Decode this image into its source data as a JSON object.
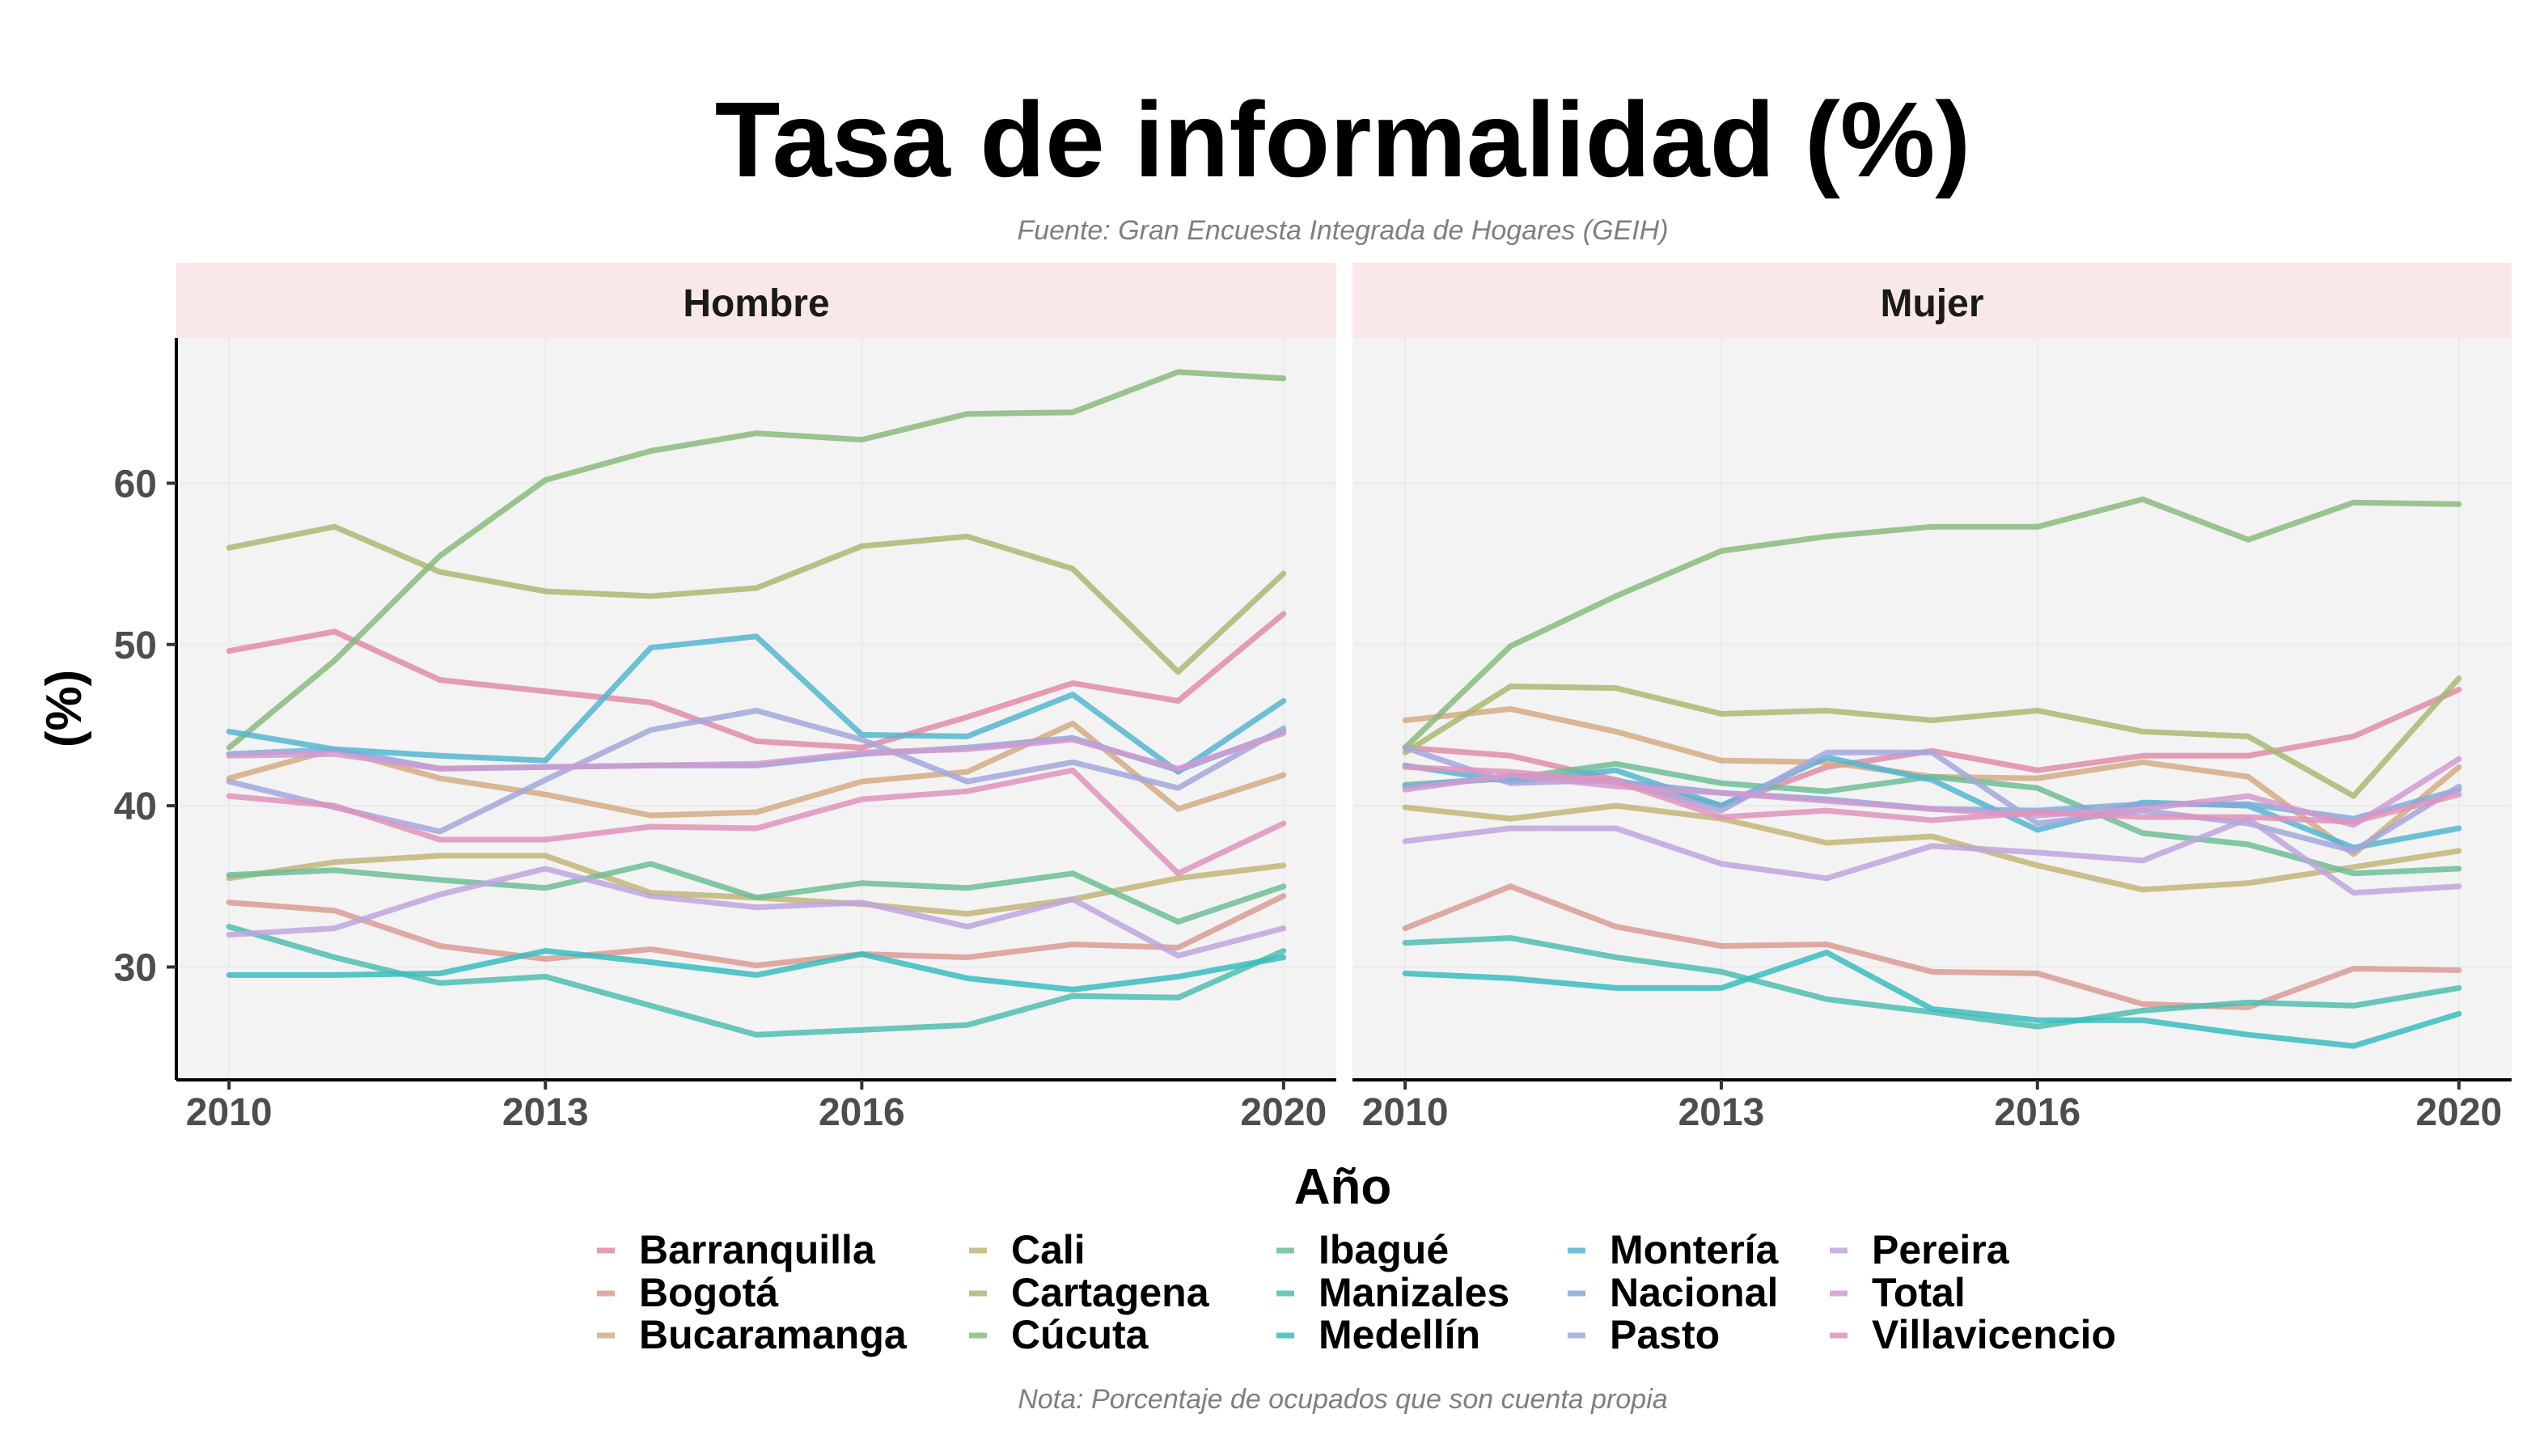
{
  "chart_data": {
    "type": "line",
    "title": "Tasa de informalidad (%)",
    "subtitle": "Fuente: Gran Encuesta Integrada de Hogares (GEIH)",
    "caption": "Nota: Porcentaje de ocupados que son cuenta propia",
    "xlabel": "Año",
    "ylabel": "(%)",
    "x": [
      2010,
      2011,
      2012,
      2013,
      2014,
      2015,
      2016,
      2017,
      2018,
      2019,
      2020
    ],
    "xlim": [
      2009.5,
      2020.5
    ],
    "ylim": [
      23,
      69
    ],
    "xticks": [
      "2010",
      "2013",
      "2016",
      "2020"
    ],
    "yticks": [
      "30",
      "40",
      "50",
      "60"
    ],
    "grid": true,
    "legend_position": "bottom",
    "colors": {
      "Barranquilla": "#e08ca6",
      "Bogotá": "#d99b93",
      "Bucaramanga": "#d3aa82",
      "Cali": "#c2b577",
      "Cartagena": "#a9b872",
      "Cúcuta": "#88ba7c",
      "Ibagué": "#6cbd96",
      "Manizales": "#4fbdaf",
      "Medellín": "#38bcbf",
      "Montería": "#52b6cf",
      "Nacional": "#7eacdb",
      "Pasto": "#a3a7dc",
      "Pereira": "#bea5dc",
      "Total": "#d29ad0",
      "Villavicencio": "#df93bb"
    },
    "panels": [
      {
        "name": "Hombre",
        "series": [
          {
            "name": "Barranquilla",
            "values": [
              49.6,
              50.8,
              47.8,
              47.1,
              46.4,
              44.0,
              43.6,
              45.5,
              47.6,
              46.5,
              51.9
            ]
          },
          {
            "name": "Bogotá",
            "values": [
              34.0,
              33.5,
              31.3,
              30.5,
              31.1,
              30.1,
              30.8,
              30.6,
              31.4,
              31.2,
              34.4
            ]
          },
          {
            "name": "Bucaramanga",
            "values": [
              41.7,
              43.5,
              41.7,
              40.7,
              39.4,
              39.6,
              41.5,
              42.1,
              45.1,
              39.8,
              41.9
            ]
          },
          {
            "name": "Cali",
            "values": [
              35.5,
              36.5,
              36.9,
              36.9,
              34.6,
              34.3,
              33.9,
              33.3,
              34.2,
              35.5,
              36.3
            ]
          },
          {
            "name": "Cartagena",
            "values": [
              56.0,
              57.3,
              54.5,
              53.3,
              53.0,
              53.5,
              56.1,
              56.7,
              54.7,
              48.3,
              54.4
            ]
          },
          {
            "name": "Cúcuta",
            "values": [
              43.6,
              49.0,
              55.5,
              60.2,
              62.0,
              63.1,
              62.7,
              64.3,
              64.4,
              66.9,
              66.5
            ]
          },
          {
            "name": "Ibagué",
            "values": [
              35.7,
              36.0,
              35.4,
              34.9,
              36.4,
              34.3,
              35.2,
              34.9,
              35.8,
              32.8,
              35.0
            ]
          },
          {
            "name": "Manizales",
            "values": [
              32.5,
              30.6,
              29.0,
              29.4,
              27.6,
              25.8,
              26.1,
              26.4,
              28.2,
              28.1,
              31.0
            ]
          },
          {
            "name": "Medellín",
            "values": [
              29.5,
              29.5,
              29.6,
              31.0,
              30.3,
              29.5,
              30.8,
              29.3,
              28.6,
              29.4,
              30.6
            ]
          },
          {
            "name": "Montería",
            "values": [
              44.6,
              43.5,
              43.1,
              42.8,
              49.8,
              50.5,
              44.4,
              44.3,
              46.9,
              42.1,
              46.5
            ]
          },
          {
            "name": "Nacional",
            "values": [
              43.2,
              43.5,
              42.3,
              42.4,
              42.5,
              42.5,
              43.2,
              43.6,
              44.2,
              42.2,
              44.6
            ]
          },
          {
            "name": "Pasto",
            "values": [
              41.5,
              39.9,
              38.4,
              41.6,
              44.7,
              45.9,
              44.1,
              41.5,
              42.7,
              41.1,
              44.8
            ]
          },
          {
            "name": "Pereira",
            "values": [
              32.0,
              32.4,
              34.5,
              36.1,
              34.4,
              33.7,
              34.0,
              32.5,
              34.2,
              30.7,
              32.4
            ]
          },
          {
            "name": "Total",
            "values": [
              43.1,
              43.2,
              42.3,
              42.4,
              42.5,
              42.6,
              43.3,
              43.5,
              44.1,
              42.3,
              44.5
            ]
          },
          {
            "name": "Villavicencio",
            "values": [
              40.6,
              40.0,
              37.9,
              37.9,
              38.7,
              38.6,
              40.4,
              40.9,
              42.2,
              35.8,
              38.9
            ]
          }
        ]
      },
      {
        "name": "Mujer",
        "series": [
          {
            "name": "Barranquilla",
            "values": [
              43.6,
              43.1,
              41.6,
              40.0,
              42.4,
              43.4,
              42.2,
              43.1,
              43.1,
              44.3,
              47.2
            ]
          },
          {
            "name": "Bogotá",
            "values": [
              32.4,
              35.0,
              32.5,
              31.3,
              31.4,
              29.7,
              29.6,
              27.7,
              27.5,
              29.9,
              29.8
            ]
          },
          {
            "name": "Bucaramanga",
            "values": [
              45.3,
              46.0,
              44.6,
              42.8,
              42.7,
              41.8,
              41.7,
              42.7,
              41.8,
              37.0,
              42.4
            ]
          },
          {
            "name": "Cali",
            "values": [
              39.9,
              39.2,
              40.0,
              39.2,
              37.7,
              38.1,
              36.3,
              34.8,
              35.2,
              36.2,
              37.2
            ]
          },
          {
            "name": "Cartagena",
            "values": [
              43.3,
              47.4,
              47.3,
              45.7,
              45.9,
              45.3,
              45.9,
              44.6,
              44.3,
              40.6,
              47.9
            ]
          },
          {
            "name": "Cúcuta",
            "values": [
              43.6,
              49.9,
              53.0,
              55.8,
              56.7,
              57.3,
              57.3,
              59.0,
              56.5,
              58.8,
              58.7
            ]
          },
          {
            "name": "Ibagué",
            "values": [
              41.3,
              41.7,
              42.6,
              41.4,
              40.9,
              41.8,
              41.1,
              38.3,
              37.6,
              35.8,
              36.1
            ]
          },
          {
            "name": "Manizales",
            "values": [
              31.5,
              31.8,
              30.6,
              29.7,
              28.0,
              27.2,
              26.3,
              27.3,
              27.8,
              27.6,
              28.7
            ]
          },
          {
            "name": "Medellín",
            "values": [
              29.6,
              29.3,
              28.7,
              28.7,
              30.9,
              27.4,
              26.7,
              26.7,
              25.8,
              25.1,
              27.1
            ]
          },
          {
            "name": "Montería",
            "values": [
              42.5,
              41.5,
              42.2,
              40.0,
              43.0,
              41.6,
              38.5,
              40.2,
              40.0,
              37.4,
              38.6
            ]
          },
          {
            "name": "Nacional",
            "values": [
              41.2,
              41.8,
              41.5,
              40.8,
              40.4,
              39.8,
              39.7,
              40.1,
              40.1,
              39.2,
              41.0
            ]
          },
          {
            "name": "Pasto",
            "values": [
              43.6,
              41.4,
              41.6,
              39.7,
              43.3,
              43.3,
              38.9,
              39.7,
              38.9,
              37.2,
              41.2
            ]
          },
          {
            "name": "Pereira",
            "values": [
              37.8,
              38.6,
              38.6,
              36.4,
              35.5,
              37.5,
              37.1,
              36.6,
              39.2,
              34.6,
              35.0
            ]
          },
          {
            "name": "Total",
            "values": [
              41.0,
              41.9,
              41.2,
              40.8,
              40.3,
              39.8,
              39.4,
              39.8,
              40.6,
              38.8,
              42.9
            ]
          },
          {
            "name": "Villavicencio",
            "values": [
              42.4,
              42.1,
              41.5,
              39.3,
              39.7,
              39.1,
              39.6,
              39.3,
              39.3,
              39.0,
              40.7
            ]
          }
        ]
      }
    ],
    "legend": [
      [
        "Barranquilla",
        "Bogotá",
        "Bucaramanga"
      ],
      [
        "Cali",
        "Cartagena",
        "Cúcuta"
      ],
      [
        "Ibagué",
        "Manizales",
        "Medellín"
      ],
      [
        "Montería",
        "Nacional",
        "Pasto"
      ],
      [
        "Pereira",
        "Total",
        "Villavicencio"
      ]
    ]
  }
}
